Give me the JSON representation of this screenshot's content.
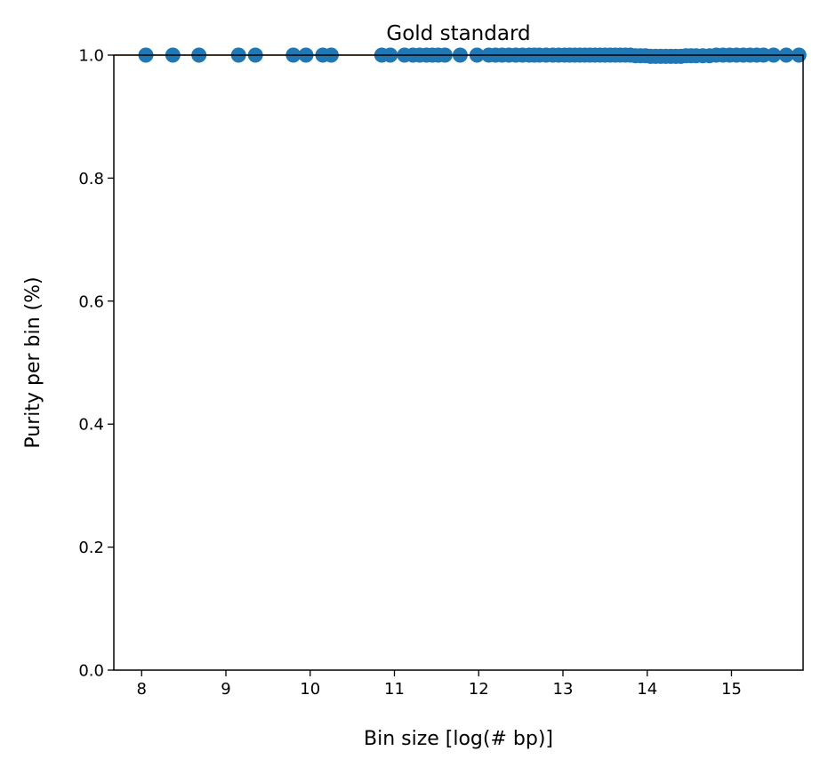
{
  "chart_data": {
    "type": "scatter",
    "title": "Gold standard",
    "xlabel": "Bin size [log(# bp)]",
    "ylabel": "Purity per bin (%)",
    "xlim": [
      7.67,
      15.85
    ],
    "ylim": [
      0.0,
      1.0
    ],
    "xticks": [
      "8",
      "9",
      "10",
      "11",
      "12",
      "13",
      "14",
      "15"
    ],
    "yticks": [
      "0.0",
      "0.2",
      "0.4",
      "0.6",
      "0.8",
      "1.0"
    ],
    "grid": false,
    "legend": "none",
    "colors": {
      "points": "#1f77b4",
      "line": "#ff7f0e",
      "axes": "#000000"
    },
    "reference_line": {
      "x": [
        7.67,
        15.85
      ],
      "y": [
        1.0,
        1.0
      ]
    },
    "points": {
      "x": [
        8.05,
        8.37,
        8.68,
        9.15,
        9.35,
        9.8,
        9.95,
        10.15,
        10.25,
        10.85,
        10.95,
        11.12,
        11.22,
        11.3,
        11.38,
        11.45,
        11.52,
        11.6,
        11.78,
        11.98,
        12.12,
        12.2,
        12.28,
        12.36,
        12.44,
        12.52,
        12.6,
        12.66,
        12.72,
        12.8,
        12.88,
        12.95,
        13.02,
        13.08,
        13.14,
        13.2,
        13.26,
        13.32,
        13.38,
        13.44,
        13.5,
        13.56,
        13.62,
        13.68,
        13.74,
        13.8,
        13.86,
        13.92,
        13.98,
        14.04,
        14.1,
        14.16,
        14.22,
        14.28,
        14.34,
        14.4,
        14.46,
        14.52,
        14.58,
        14.66,
        14.74,
        14.82,
        14.9,
        14.98,
        15.06,
        15.14,
        15.22,
        15.3,
        15.38,
        15.5,
        15.65,
        15.8
      ],
      "y": [
        1.0,
        1.0,
        1.0,
        1.0,
        1.0,
        1.0,
        1.0,
        1.0,
        1.0,
        1.0,
        1.0,
        1.0,
        1.0,
        1.0,
        1.0,
        1.0,
        1.0,
        1.0,
        1.0,
        1.0,
        1.0,
        1.0,
        1.0,
        1.0,
        1.0,
        1.0,
        1.0,
        1.0,
        1.0,
        1.0,
        1.0,
        1.0,
        1.0,
        1.0,
        1.0,
        1.0,
        1.0,
        1.0,
        1.0,
        1.0,
        1.0,
        1.0,
        1.0,
        1.0,
        1.0,
        1.0,
        0.999,
        0.999,
        0.999,
        0.998,
        0.998,
        0.998,
        0.998,
        0.998,
        0.998,
        0.998,
        0.999,
        0.999,
        0.999,
        0.999,
        0.999,
        1.0,
        1.0,
        1.0,
        1.0,
        1.0,
        1.0,
        1.0,
        1.0,
        1.0,
        1.0,
        1.0
      ]
    }
  }
}
